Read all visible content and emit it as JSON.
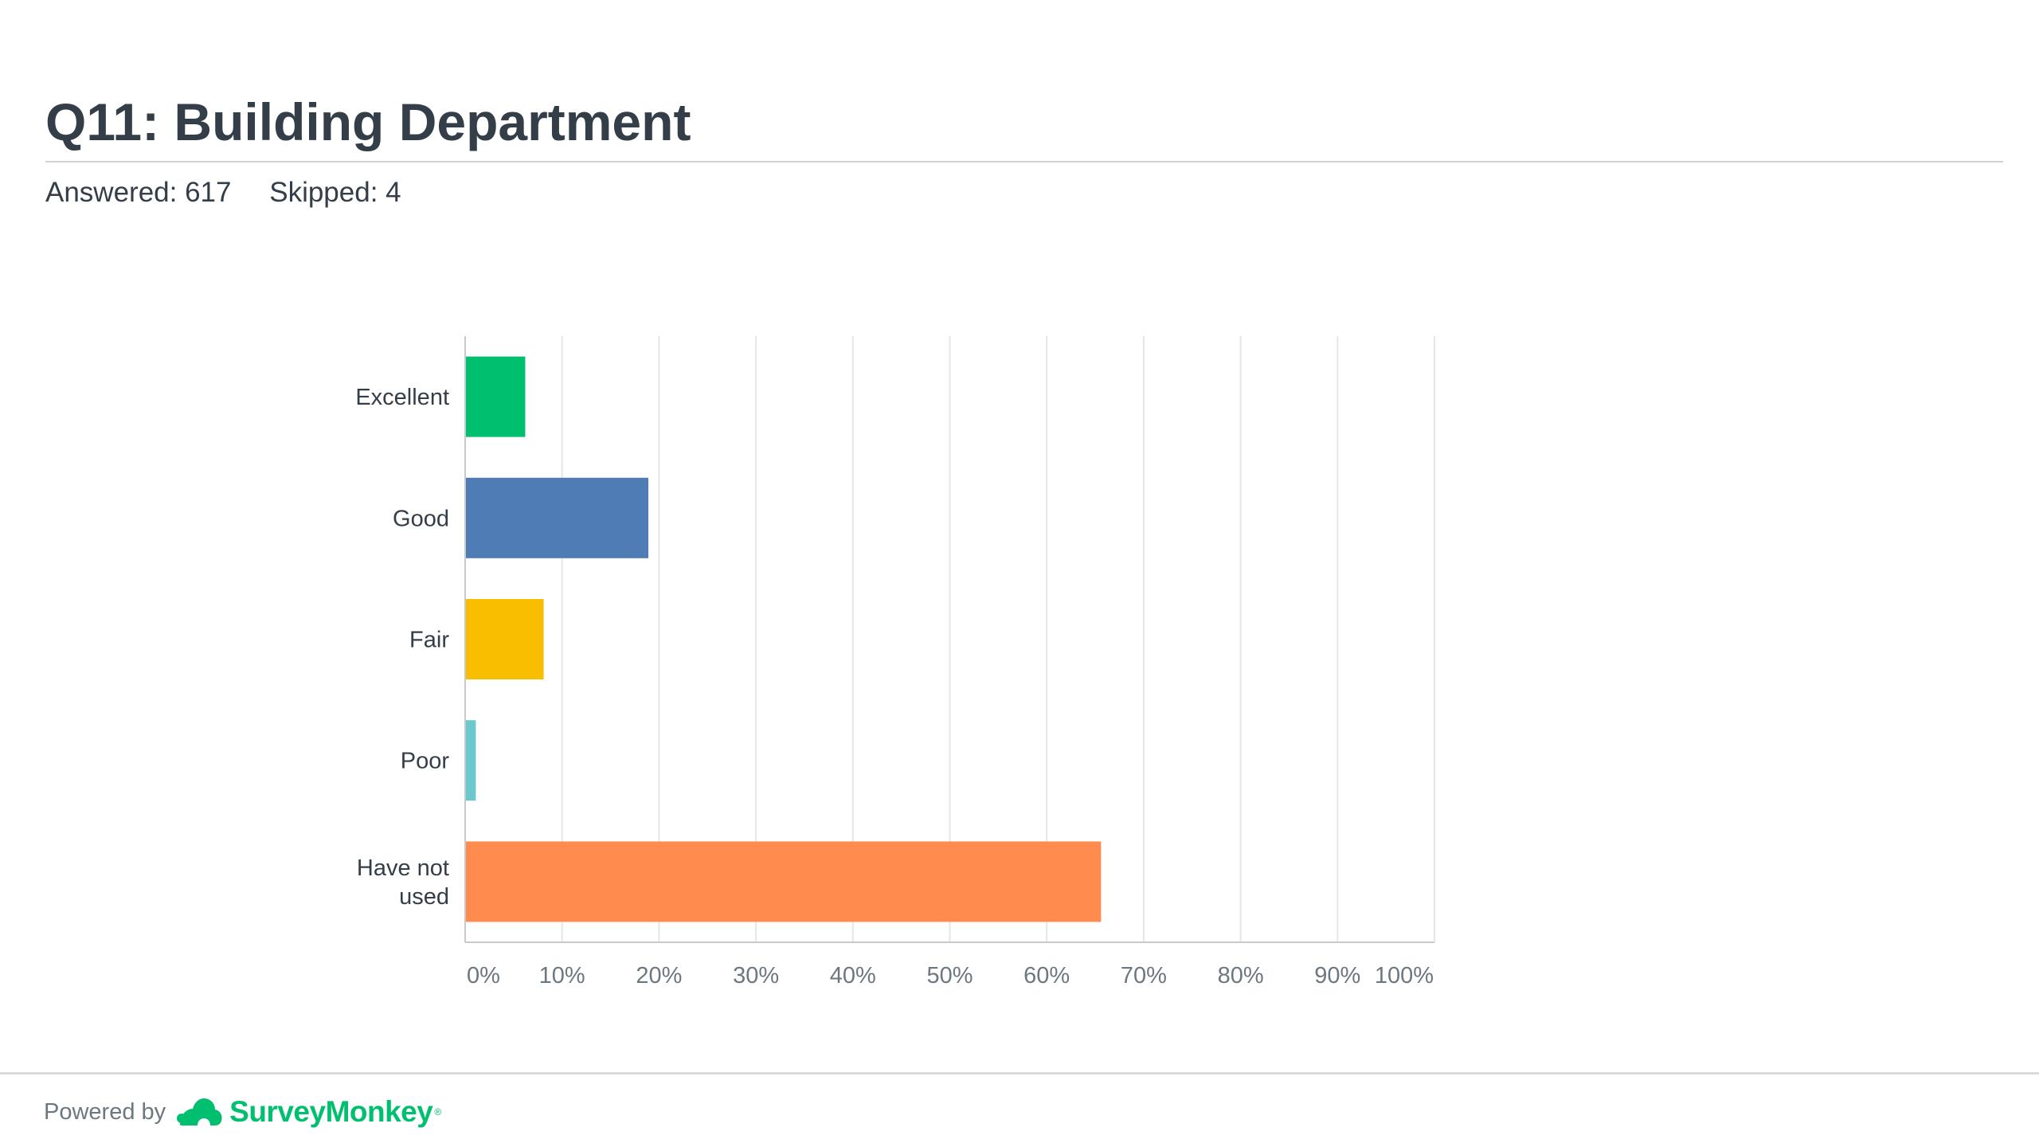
{
  "header": {
    "title": "Q11: Building Department",
    "answered": "Answered: 617",
    "skipped": "Skipped: 4"
  },
  "footer": {
    "powered_by": "Powered by",
    "brand": "SurveyMonkey",
    "brand_mark": "®",
    "brand_icon": "surveymonkey-logo-icon"
  },
  "colors": {
    "text": "#333e48",
    "grid": "#e5e6e7",
    "brand": "#00bf6f"
  },
  "chart_data": {
    "type": "bar",
    "orientation": "horizontal",
    "categories": [
      {
        "lines": [
          "Excellent"
        ]
      },
      {
        "lines": [
          "Good"
        ]
      },
      {
        "lines": [
          "Fair"
        ]
      },
      {
        "lines": [
          "Poor"
        ]
      },
      {
        "lines": [
          "Have not",
          "used"
        ]
      }
    ],
    "values": [
      6.2,
      18.9,
      8.1,
      1.1,
      65.6
    ],
    "colors": [
      "#00bf6f",
      "#507cb6",
      "#f9be00",
      "#6bc8cd",
      "#ff8b4f"
    ],
    "xlim": [
      0,
      100
    ],
    "xticks": [
      "0%",
      "10%",
      "20%",
      "30%",
      "40%",
      "50%",
      "60%",
      "70%",
      "80%",
      "90%",
      "100%"
    ],
    "grid": true
  }
}
